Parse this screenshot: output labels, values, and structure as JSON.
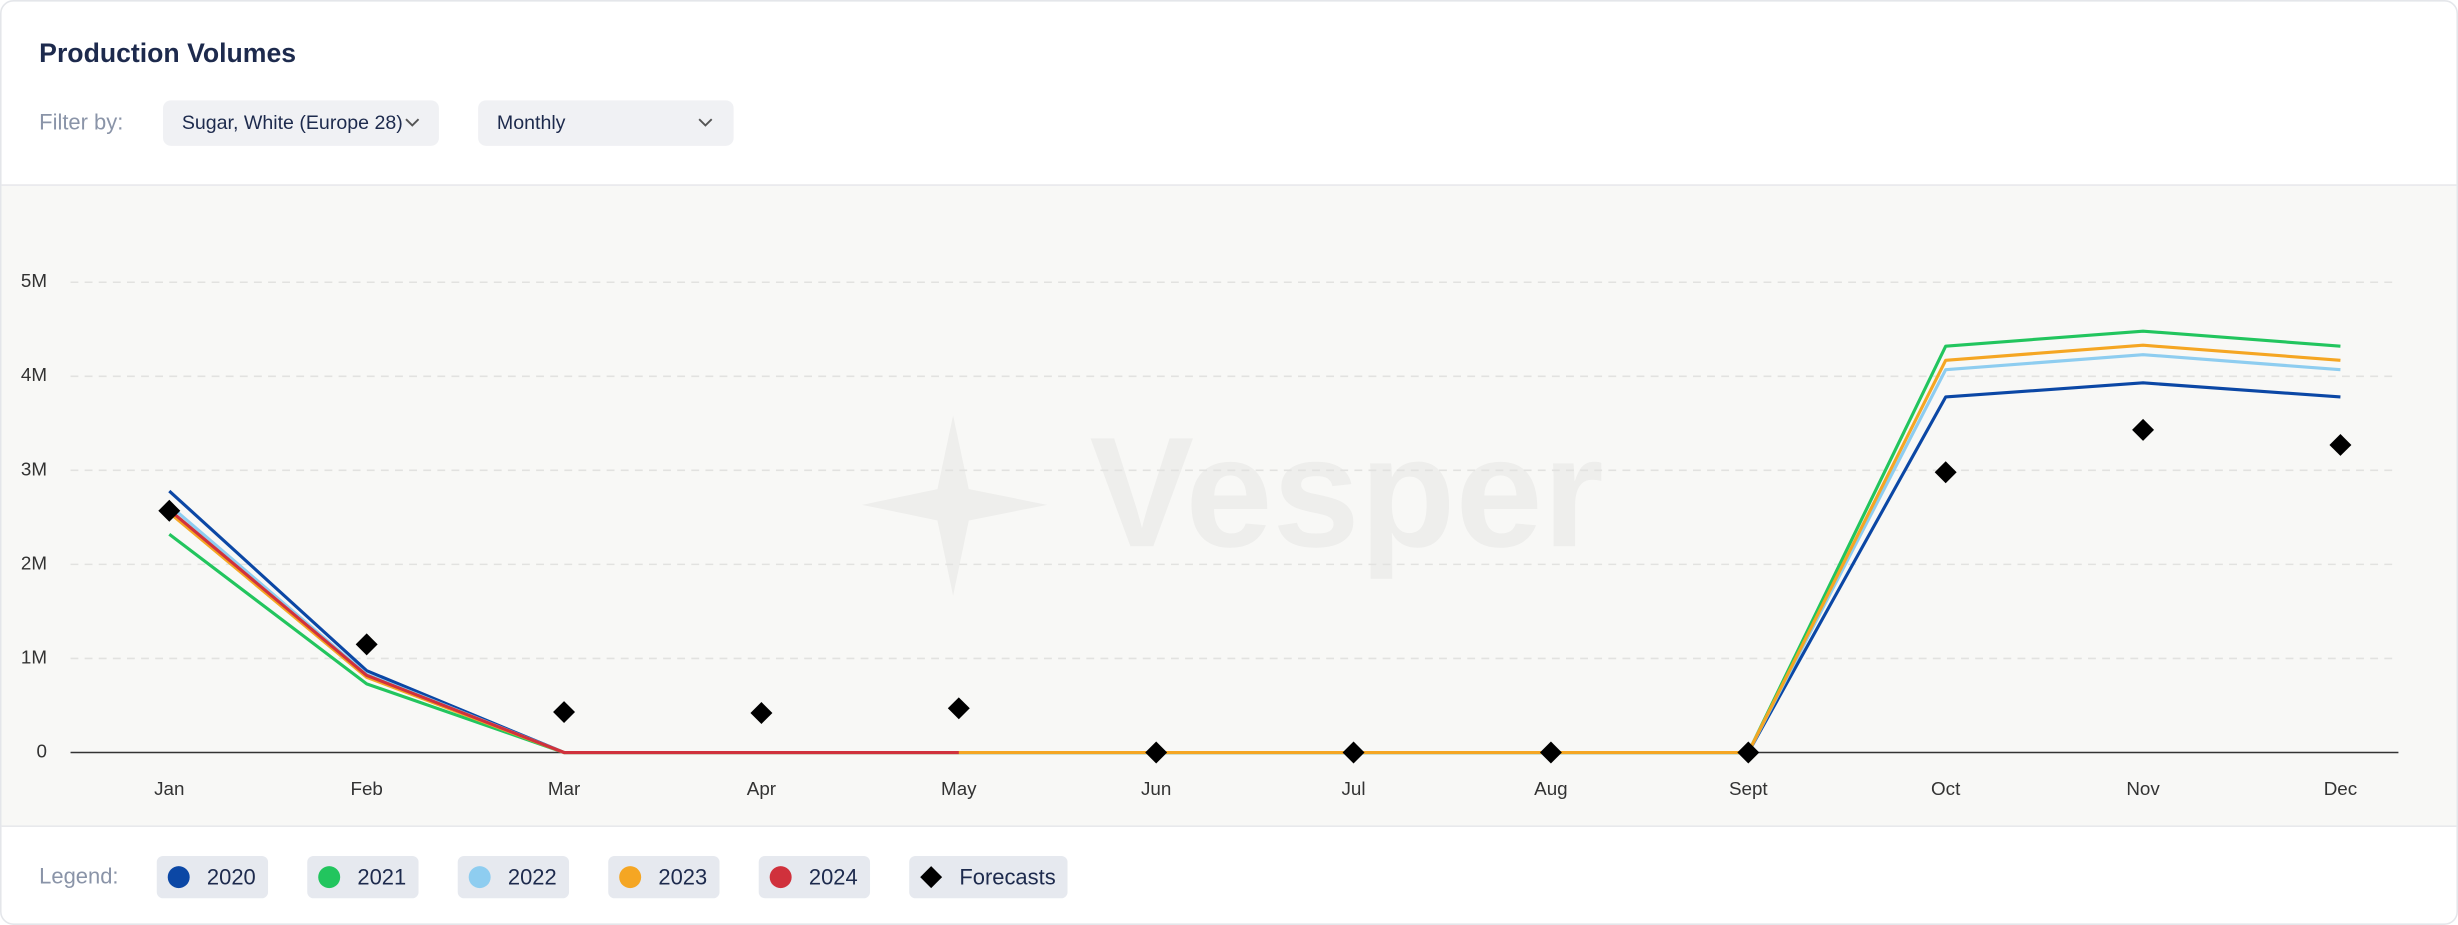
{
  "header": {
    "title": "Production Volumes"
  },
  "filters": {
    "label": "Filter by:",
    "commodity": "Sugar, White (Europe 28)",
    "period": "Monthly"
  },
  "legend_label": "Legend:",
  "watermark": "Vesper",
  "chart_data": {
    "type": "line",
    "categories": [
      "Jan",
      "Feb",
      "Mar",
      "Apr",
      "May",
      "Jun",
      "Jul",
      "Aug",
      "Sept",
      "Oct",
      "Nov",
      "Dec"
    ],
    "ylim": [
      0,
      6000000
    ],
    "yticks": [
      0,
      {
        "value": 1000000,
        "label": "1M"
      },
      {
        "value": 2000000,
        "label": "2M"
      },
      {
        "value": 3000000,
        "label": "3M"
      },
      {
        "value": 4000000,
        "label": "4M"
      },
      {
        "value": 5000000,
        "label": "5M"
      }
    ],
    "grid": true,
    "series": [
      {
        "name": "2020",
        "color": "#0b47a5",
        "values": [
          2780000,
          870000,
          0,
          0,
          0,
          0,
          0,
          0,
          0,
          3780000,
          3930000,
          3780000
        ]
      },
      {
        "name": "2021",
        "color": "#22c55e",
        "values": [
          2320000,
          730000,
          0,
          0,
          0,
          0,
          0,
          0,
          0,
          4320000,
          4480000,
          4320000
        ]
      },
      {
        "name": "2022",
        "color": "#8ecdf0",
        "values": [
          2630000,
          830000,
          0,
          0,
          0,
          0,
          0,
          0,
          0,
          4070000,
          4230000,
          4070000
        ]
      },
      {
        "name": "2023",
        "color": "#f5a623",
        "values": [
          2550000,
          800000,
          0,
          0,
          0,
          0,
          0,
          0,
          0,
          4170000,
          4330000,
          4170000
        ]
      },
      {
        "name": "2024",
        "color": "#d0313c",
        "values": [
          2580000,
          820000,
          0,
          0,
          0,
          null,
          null,
          null,
          null,
          null,
          null,
          null
        ]
      },
      {
        "name": "Forecasts",
        "color": "#000000",
        "marker": "diamond",
        "values": [
          2570000,
          1150000,
          430000,
          420000,
          470000,
          0,
          0,
          0,
          0,
          2980000,
          3430000,
          3270000
        ]
      }
    ]
  }
}
